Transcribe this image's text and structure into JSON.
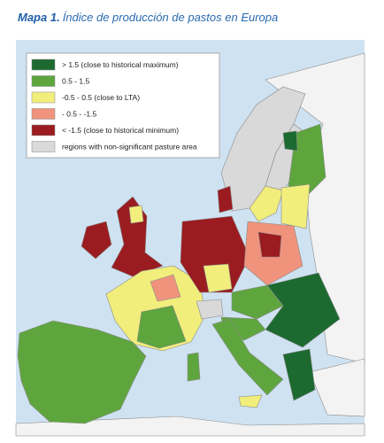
{
  "title": {
    "label": "Mapa 1.",
    "text": "Índice de producción de pastos en Europa"
  },
  "legend": {
    "items": [
      {
        "label": "> 1.5 (close to historical maximum)",
        "color": "#1d6a30"
      },
      {
        "label": "0.5 - 1.5",
        "color": "#5ea53e"
      },
      {
        "label": "-0.5 - 0.5 (close to LTA)",
        "color": "#f1ee7c"
      },
      {
        "label": "- 0.5 - -1.5",
        "color": "#f0937c"
      },
      {
        "label": "< -1.5 (close to historical minimum)",
        "color": "#9a1c20"
      },
      {
        "label": "regions with non-significant pasture area",
        "color": "#d9d9d9"
      }
    ]
  }
}
